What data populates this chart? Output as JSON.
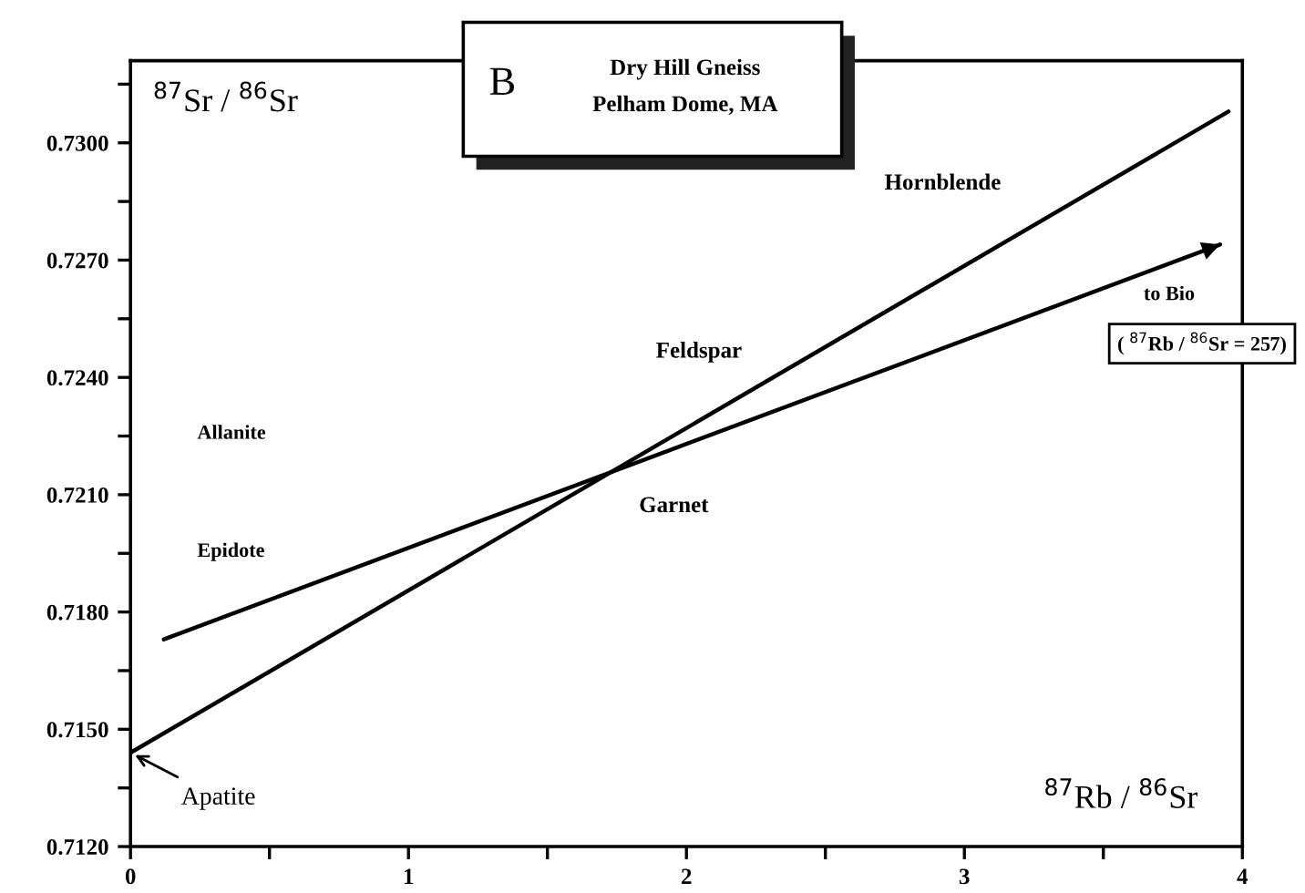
{
  "chart_data": {
    "type": "line",
    "title": "B",
    "subtitle": "Dry Hill Gneiss\nPelham Dome, MA",
    "xlabel": "$^{87}$Rb / $^{86}$Sr",
    "ylabel": "$^{87}$Sr / $^{86}$Sr",
    "series": [
      {
        "color": "#000000",
        "x": [
          0,
          3.95
        ],
        "values": [
          0.7144,
          0.7308
        ]
      },
      {
        "color": "#000000",
        "x": [
          0.12,
          3.92
        ],
        "values": [
          0.7173,
          0.7274
        ]
      }
    ],
    "xlim": [
      0,
      4
    ],
    "xticks": [
      0,
      {
        "value": 0.5,
        "label": null
      },
      1,
      {
        "value": 1.5,
        "label": null
      },
      2,
      {
        "value": 2.5,
        "label": null
      },
      3,
      {
        "value": 3.5,
        "label": null
      },
      4
    ],
    "ylim": [
      0.712,
      0.7321
    ],
    "yticks": [
      {
        "value": 0.712,
        "label": "0.7120"
      },
      {
        "value": 0.7135,
        "label": null
      },
      {
        "value": 0.715,
        "label": "0.7150"
      },
      {
        "value": 0.7165,
        "label": null
      },
      {
        "value": 0.718,
        "label": "0.7180"
      },
      {
        "value": 0.7195,
        "label": null
      },
      {
        "value": 0.721,
        "label": "0.7210"
      },
      {
        "value": 0.7225,
        "label": null
      },
      {
        "value": 0.724,
        "label": "0.7240"
      },
      {
        "value": 0.7255,
        "label": null
      },
      {
        "value": 0.727,
        "label": "0.7270"
      },
      {
        "value": 0.7285,
        "label": null
      },
      {
        "value": 0.73,
        "label": "0.7300"
      },
      {
        "value": 0.7315,
        "label": null
      }
    ],
    "grid": false,
    "annotations": [
      "Allanite",
      "Epidote",
      {
        "text": "Apatite",
        "x": 0.0,
        "y": 0.7144
      },
      {
        "text": "Garnet",
        "x": 1.72,
        "y": 0.7216
      },
      {
        "text": "Feldspar",
        "x": 2.3,
        "y": 0.724
      },
      {
        "text": "Hornblende",
        "x": 3.35,
        "y": 0.7283
      },
      {
        "text": "to Bio",
        "x": 3.92,
        "y": 0.7274
      },
      "( $^{87}$Rb / $^{86}$Sr = 257)"
    ]
  }
}
